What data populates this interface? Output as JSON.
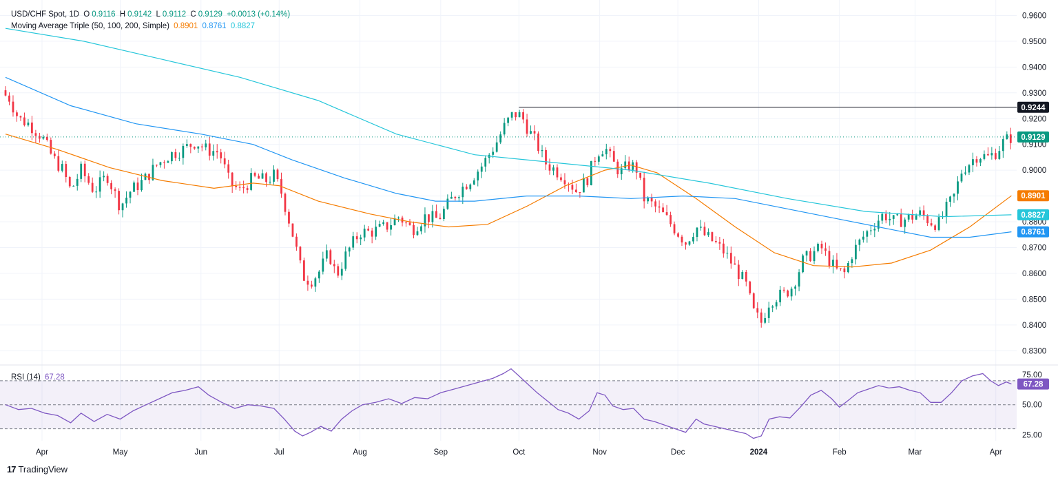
{
  "header": {
    "symbol": "USD/CHF Spot, 1D",
    "open_label": "O",
    "open": "0.9116",
    "high_label": "H",
    "high": "0.9142",
    "low_label": "L",
    "low": "0.9112",
    "close_label": "C",
    "close": "0.9129",
    "change": "+0.0013 (+0.14%)"
  },
  "ma_legend": {
    "title": "Moving Average Triple (50, 100, 200, Simple)",
    "v50": "0.8901",
    "v100": "0.8761",
    "v200": "0.8827",
    "c50": "#f57c00",
    "c100": "#2196f3",
    "c200": "#26c6da"
  },
  "rsi_legend": {
    "title": "RSI (14)",
    "value": "67.28",
    "color": "#7e57c2"
  },
  "footer": {
    "brand": "TradingView"
  },
  "colors": {
    "up": "#089981",
    "down": "#f23645",
    "grid": "#f0f3fa",
    "axis_text": "#131722"
  },
  "chart_data": [
    {
      "type": "candlestick",
      "title": "USD/CHF Spot, 1D",
      "ylim": [
        0.825,
        0.966
      ],
      "yticks": [
        0.83,
        0.84,
        0.85,
        0.86,
        0.87,
        0.88,
        0.89,
        0.9,
        0.91,
        0.92,
        0.93,
        0.94,
        0.95,
        0.96
      ],
      "ytick_labels": [
        "0.8300",
        "0.8400",
        "0.8500",
        "0.8600",
        "0.8700",
        "0.8800",
        "0.8900",
        "0.9000",
        "0.9100",
        "0.9200",
        "0.9300",
        "0.9400",
        "0.9500",
        "0.9600"
      ],
      "x_range_days": [
        0,
        388
      ],
      "x_ticks": [
        {
          "label": "Apr",
          "day": 14
        },
        {
          "label": "May",
          "day": 44
        },
        {
          "label": "Jun",
          "day": 75
        },
        {
          "label": "Jul",
          "day": 105
        },
        {
          "label": "Aug",
          "day": 136
        },
        {
          "label": "Sep",
          "day": 167
        },
        {
          "label": "Oct",
          "day": 197
        },
        {
          "label": "Nov",
          "day": 228
        },
        {
          "label": "Dec",
          "day": 258
        },
        {
          "label": "2024",
          "day": 289
        },
        {
          "label": "Feb",
          "day": 320
        },
        {
          "label": "Mar",
          "day": 349
        },
        {
          "label": "Apr",
          "day": 380
        }
      ],
      "close_path": [
        [
          1,
          0.929
        ],
        [
          5,
          0.92
        ],
        [
          9,
          0.918
        ],
        [
          14,
          0.913
        ],
        [
          18,
          0.905
        ],
        [
          22,
          0.9
        ],
        [
          25,
          0.892
        ],
        [
          29,
          0.9
        ],
        [
          34,
          0.892
        ],
        [
          39,
          0.898
        ],
        [
          44,
          0.886
        ],
        [
          48,
          0.892
        ],
        [
          53,
          0.896
        ],
        [
          58,
          0.902
        ],
        [
          63,
          0.906
        ],
        [
          68,
          0.908
        ],
        [
          73,
          0.911
        ],
        [
          77,
          0.908
        ],
        [
          82,
          0.907
        ],
        [
          86,
          0.895
        ],
        [
          90,
          0.892
        ],
        [
          95,
          0.897
        ],
        [
          100,
          0.896
        ],
        [
          103,
          0.898
        ],
        [
          106,
          0.891
        ],
        [
          110,
          0.876
        ],
        [
          114,
          0.859
        ],
        [
          117,
          0.857
        ],
        [
          120,
          0.86
        ],
        [
          124,
          0.868
        ],
        [
          127,
          0.859
        ],
        [
          131,
          0.868
        ],
        [
          136,
          0.876
        ],
        [
          140,
          0.876
        ],
        [
          146,
          0.878
        ],
        [
          151,
          0.882
        ],
        [
          156,
          0.877
        ],
        [
          161,
          0.882
        ],
        [
          166,
          0.881
        ],
        [
          172,
          0.89
        ],
        [
          178,
          0.896
        ],
        [
          183,
          0.902
        ],
        [
          188,
          0.91
        ],
        [
          192,
          0.918
        ],
        [
          195,
          0.922
        ],
        [
          198,
          0.921
        ],
        [
          201,
          0.915
        ],
        [
          204,
          0.91
        ],
        [
          207,
          0.903
        ],
        [
          211,
          0.9
        ],
        [
          215,
          0.897
        ],
        [
          219,
          0.892
        ],
        [
          223,
          0.896
        ],
        [
          227,
          0.907
        ],
        [
          230,
          0.909
        ],
        [
          233,
          0.903
        ],
        [
          236,
          0.899
        ],
        [
          239,
          0.902
        ],
        [
          242,
          0.901
        ],
        [
          245,
          0.889
        ],
        [
          249,
          0.886
        ],
        [
          253,
          0.882
        ],
        [
          257,
          0.877
        ],
        [
          261,
          0.872
        ],
        [
          265,
          0.878
        ],
        [
          268,
          0.875
        ],
        [
          272,
          0.872
        ],
        [
          276,
          0.868
        ],
        [
          280,
          0.862
        ],
        [
          284,
          0.856
        ],
        [
          287,
          0.845
        ],
        [
          290,
          0.841
        ],
        [
          293,
          0.849
        ],
        [
          296,
          0.851
        ],
        [
          299,
          0.852
        ],
        [
          302,
          0.855
        ],
        [
          306,
          0.865
        ],
        [
          310,
          0.868
        ],
        [
          313,
          0.87
        ],
        [
          316,
          0.865
        ],
        [
          319,
          0.861
        ],
        [
          322,
          0.86
        ],
        [
          325,
          0.868
        ],
        [
          329,
          0.874
        ],
        [
          333,
          0.879
        ],
        [
          337,
          0.883
        ],
        [
          341,
          0.88
        ],
        [
          345,
          0.881
        ],
        [
          348,
          0.882
        ],
        [
          351,
          0.883
        ],
        [
          355,
          0.88
        ],
        [
          358,
          0.879
        ],
        [
          361,
          0.885
        ],
        [
          364,
          0.89
        ],
        [
          367,
          0.9
        ],
        [
          370,
          0.903
        ],
        [
          373,
          0.906
        ],
        [
          377,
          0.905
        ],
        [
          380,
          0.907
        ],
        [
          383,
          0.911
        ],
        [
          386,
          0.9129
        ]
      ],
      "last_close": 0.9129,
      "high_marker": {
        "value": 0.9244,
        "label": "0.9244",
        "from_day": 197
      },
      "series": [
        {
          "name": "50",
          "color": "#f57c00",
          "last_label": "0.8901",
          "path": [
            [
              0,
              0.914
            ],
            [
              20,
              0.908
            ],
            [
              40,
              0.901
            ],
            [
              60,
              0.896
            ],
            [
              80,
              0.893
            ],
            [
              95,
              0.895
            ],
            [
              105,
              0.894
            ],
            [
              120,
              0.888
            ],
            [
              140,
              0.883
            ],
            [
              155,
              0.88
            ],
            [
              170,
              0.878
            ],
            [
              185,
              0.879
            ],
            [
              200,
              0.886
            ],
            [
              215,
              0.894
            ],
            [
              230,
              0.9
            ],
            [
              240,
              0.902
            ],
            [
              250,
              0.899
            ],
            [
              265,
              0.889
            ],
            [
              280,
              0.878
            ],
            [
              295,
              0.868
            ],
            [
              310,
              0.863
            ],
            [
              325,
              0.8625
            ],
            [
              340,
              0.864
            ],
            [
              355,
              0.869
            ],
            [
              370,
              0.878
            ],
            [
              386,
              0.8901
            ]
          ]
        },
        {
          "name": "100",
          "color": "#2196f3",
          "last_label": "0.8761",
          "path": [
            [
              0,
              0.936
            ],
            [
              25,
              0.925
            ],
            [
              50,
              0.918
            ],
            [
              75,
              0.914
            ],
            [
              95,
              0.91
            ],
            [
              110,
              0.904
            ],
            [
              130,
              0.897
            ],
            [
              150,
              0.891
            ],
            [
              165,
              0.888
            ],
            [
              180,
              0.888
            ],
            [
              200,
              0.89
            ],
            [
              220,
              0.89
            ],
            [
              240,
              0.889
            ],
            [
              260,
              0.89
            ],
            [
              280,
              0.889
            ],
            [
              300,
              0.885
            ],
            [
              320,
              0.881
            ],
            [
              340,
              0.877
            ],
            [
              355,
              0.874
            ],
            [
              370,
              0.874
            ],
            [
              386,
              0.8761
            ]
          ]
        },
        {
          "name": "200",
          "color": "#26c6da",
          "last_label": "0.8827",
          "path": [
            [
              0,
              0.955
            ],
            [
              30,
              0.95
            ],
            [
              60,
              0.943
            ],
            [
              90,
              0.936
            ],
            [
              120,
              0.927
            ],
            [
              150,
              0.914
            ],
            [
              180,
              0.906
            ],
            [
              210,
              0.903
            ],
            [
              240,
              0.9
            ],
            [
              270,
              0.895
            ],
            [
              300,
              0.889
            ],
            [
              330,
              0.884
            ],
            [
              360,
              0.882
            ],
            [
              386,
              0.8827
            ]
          ]
        }
      ]
    },
    {
      "type": "line",
      "title": "RSI (14)",
      "ylim": [
        20,
        82
      ],
      "yticks": [
        25,
        50,
        75
      ],
      "ytick_labels": [
        "25.00",
        "50.00",
        "75.00"
      ],
      "bands": {
        "upper": 70,
        "middle": 50,
        "lower": 30
      },
      "series": [
        {
          "name": "RSI",
          "color": "#7e57c2",
          "last_label": "67.28",
          "path": [
            [
              0,
              50
            ],
            [
              5,
              46
            ],
            [
              10,
              47
            ],
            [
              15,
              43
            ],
            [
              20,
              41
            ],
            [
              25,
              35
            ],
            [
              29,
              43
            ],
            [
              34,
              36
            ],
            [
              39,
              42
            ],
            [
              44,
              38
            ],
            [
              49,
              45
            ],
            [
              54,
              50
            ],
            [
              59,
              55
            ],
            [
              64,
              60
            ],
            [
              69,
              62
            ],
            [
              74,
              65
            ],
            [
              78,
              58
            ],
            [
              83,
              52
            ],
            [
              88,
              47
            ],
            [
              93,
              50
            ],
            [
              98,
              49
            ],
            [
              103,
              47
            ],
            [
              107,
              38
            ],
            [
              111,
              28
            ],
            [
              114,
              24
            ],
            [
              117,
              27
            ],
            [
              121,
              32
            ],
            [
              125,
              28
            ],
            [
              129,
              38
            ],
            [
              133,
              45
            ],
            [
              137,
              50
            ],
            [
              142,
              52
            ],
            [
              147,
              55
            ],
            [
              152,
              51
            ],
            [
              157,
              56
            ],
            [
              162,
              55
            ],
            [
              167,
              60
            ],
            [
              172,
              63
            ],
            [
              177,
              66
            ],
            [
              182,
              69
            ],
            [
              187,
              72
            ],
            [
              191,
              76
            ],
            [
              194,
              80
            ],
            [
              197,
              74
            ],
            [
              200,
              68
            ],
            [
              204,
              60
            ],
            [
              208,
              53
            ],
            [
              212,
              46
            ],
            [
              216,
              43
            ],
            [
              220,
              38
            ],
            [
              224,
              45
            ],
            [
              227,
              60
            ],
            [
              230,
              58
            ],
            [
              233,
              49
            ],
            [
              237,
              46
            ],
            [
              241,
              47
            ],
            [
              245,
              38
            ],
            [
              249,
              36
            ],
            [
              253,
              33
            ],
            [
              257,
              30
            ],
            [
              261,
              27
            ],
            [
              265,
              38
            ],
            [
              268,
              34
            ],
            [
              272,
              32
            ],
            [
              276,
              30
            ],
            [
              280,
              28
            ],
            [
              284,
              26
            ],
            [
              287,
              22
            ],
            [
              290,
              24
            ],
            [
              293,
              38
            ],
            [
              297,
              40
            ],
            [
              301,
              39
            ],
            [
              305,
              48
            ],
            [
              309,
              58
            ],
            [
              313,
              62
            ],
            [
              317,
              55
            ],
            [
              320,
              48
            ],
            [
              323,
              53
            ],
            [
              327,
              60
            ],
            [
              331,
              63
            ],
            [
              335,
              66
            ],
            [
              339,
              64
            ],
            [
              343,
              65
            ],
            [
              347,
              62
            ],
            [
              351,
              60
            ],
            [
              355,
              52
            ],
            [
              359,
              52
            ],
            [
              363,
              60
            ],
            [
              367,
              70
            ],
            [
              371,
              74
            ],
            [
              375,
              76
            ],
            [
              378,
              70
            ],
            [
              381,
              66
            ],
            [
              384,
              69
            ],
            [
              386,
              67.28
            ]
          ]
        }
      ]
    }
  ]
}
